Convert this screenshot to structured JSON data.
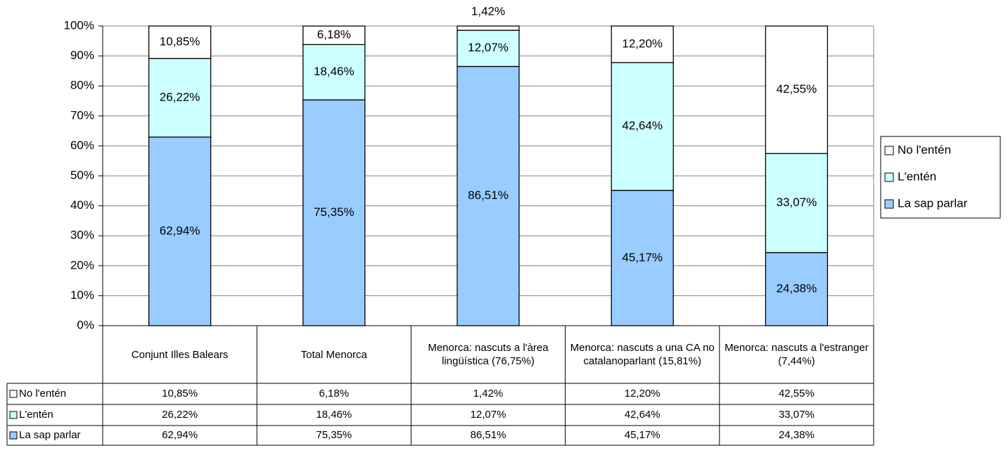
{
  "chart_data": {
    "type": "stacked_bar",
    "categories": [
      "Conjunt Illes Balears",
      "Total Menorca",
      "Menorca: nascuts a l'àrea lingüística (76,75%)",
      "Menorca: nascuts a una CA no catalanoparlant (15,81%)",
      "Menorca: nascuts a l'estranger (7,44%)"
    ],
    "series": [
      {
        "name": "No l'entén",
        "color": "#ffffff",
        "values": [
          10.85,
          6.18,
          1.42,
          12.2,
          42.55
        ],
        "value_labels": [
          "10,85%",
          "6,18%",
          "1,42%",
          "12,20%",
          "42,55%"
        ]
      },
      {
        "name": "L'entén",
        "color": "#ccffff",
        "values": [
          26.22,
          18.46,
          12.07,
          42.64,
          33.07
        ],
        "value_labels": [
          "26,22%",
          "18,46%",
          "12,07%",
          "42,64%",
          "33,07%"
        ]
      },
      {
        "name": "La sap parlar",
        "color": "#99ccff",
        "values": [
          62.94,
          75.35,
          86.51,
          45.17,
          24.38
        ],
        "value_labels": [
          "62,94%",
          "75,35%",
          "86,51%",
          "45,17%",
          "24,38%"
        ]
      }
    ],
    "ylim": [
      0,
      100
    ],
    "yticks": [
      {
        "value": 0,
        "label": "0%"
      },
      {
        "value": 10,
        "label": "10%"
      },
      {
        "value": 20,
        "label": "20%"
      },
      {
        "value": 30,
        "label": "30%"
      },
      {
        "value": 40,
        "label": "40%"
      },
      {
        "value": 50,
        "label": "50%"
      },
      {
        "value": 60,
        "label": "60%"
      },
      {
        "value": 70,
        "label": "70%"
      },
      {
        "value": 80,
        "label": "80%"
      },
      {
        "value": 90,
        "label": "90%"
      },
      {
        "value": 100,
        "label": "100%"
      }
    ],
    "grid": true,
    "legend": "right"
  }
}
